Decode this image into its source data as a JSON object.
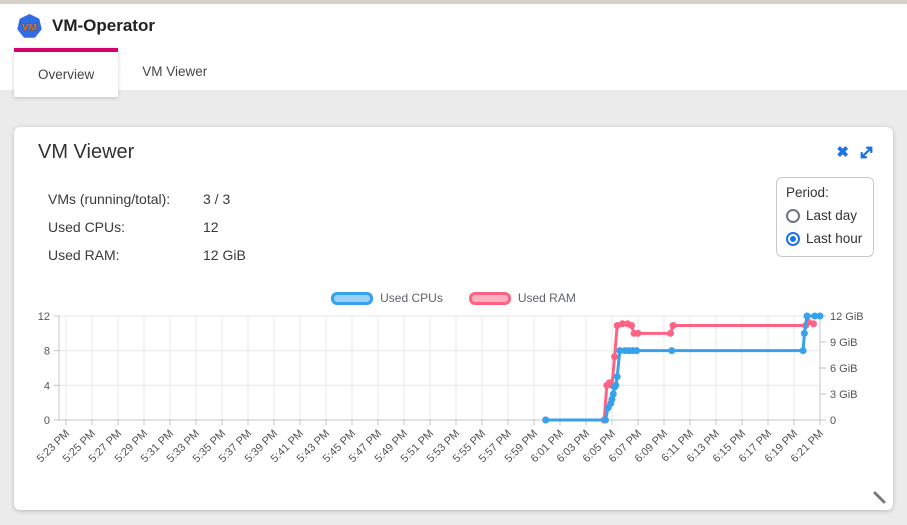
{
  "colors": {
    "tab_accent": "#d6006e",
    "icon_blue": "#1a73e8",
    "logo_blue": "#326ce5",
    "logo_text_orange": "#f08c2d",
    "page_background": "#ebebeb",
    "grid": "#e8e8e8",
    "axis_border": "#c4c4c4",
    "tick_text": "#545454"
  },
  "header": {
    "app_title": "VM-Operator",
    "logo_text": "VM"
  },
  "tabs": [
    {
      "label": "Overview",
      "active": true
    },
    {
      "label": "VM Viewer",
      "active": false
    }
  ],
  "panel": {
    "title": "VM Viewer",
    "stats": [
      {
        "label": "VMs (running/total):",
        "value": "3 / 3"
      },
      {
        "label": "Used CPUs:",
        "value": "12"
      },
      {
        "label": "Used RAM:",
        "value": "12 GiB"
      }
    ],
    "period": {
      "label": "Period:",
      "options": [
        {
          "label": "Last day",
          "selected": false
        },
        {
          "label": "Last hour",
          "selected": true
        }
      ]
    }
  },
  "chart_data": {
    "type": "line",
    "x_axis": {
      "start": "5:23 PM",
      "end": "6:21 PM",
      "interval_minutes": 2,
      "labels": [
        "5:23 PM",
        "5:25 PM",
        "5:27 PM",
        "5:29 PM",
        "5:31 PM",
        "5:33 PM",
        "5:35 PM",
        "5:37 PM",
        "5:39 PM",
        "5:41 PM",
        "5:43 PM",
        "5:45 PM",
        "5:47 PM",
        "5:49 PM",
        "5:51 PM",
        "5:53 PM",
        "5:55 PM",
        "5:57 PM",
        "5:59 PM",
        "6:01 PM",
        "6:03 PM",
        "6:05 PM",
        "6:07 PM",
        "6:09 PM",
        "6:11 PM",
        "6:13 PM",
        "6:15 PM",
        "6:17 PM",
        "6:19 PM",
        "6:21 PM"
      ]
    },
    "y_left": {
      "tick_values": [
        0,
        4,
        8,
        12
      ],
      "tick_labels": [
        "0",
        "4",
        "8",
        "12"
      ],
      "min": 0,
      "max": 12
    },
    "y_right": {
      "tick_values": [
        0,
        3,
        6,
        9,
        12
      ],
      "tick_labels": [
        "0",
        "3 GiB",
        "6 GiB",
        "9 GiB",
        "12 GiB"
      ],
      "min": 0,
      "max": 12
    },
    "grid": true,
    "legend_position": "top",
    "series": [
      {
        "name": "Used CPUs",
        "axis": "left",
        "color": "#36a2eb",
        "fill": "#9ad0f5",
        "points": [
          [
            36.9,
            0
          ],
          [
            41.5,
            0
          ],
          [
            41.7,
            1.4
          ],
          [
            41.9,
            1.9
          ],
          [
            42.0,
            2.4
          ],
          [
            42.1,
            3.0
          ],
          [
            42.2,
            3.8
          ],
          [
            42.3,
            4.0
          ],
          [
            42.4,
            5.0
          ],
          [
            42.6,
            8
          ],
          [
            43.0,
            8
          ],
          [
            43.3,
            8
          ],
          [
            43.6,
            8
          ],
          [
            43.9,
            8
          ],
          [
            46.6,
            8
          ],
          [
            56.7,
            8
          ],
          [
            56.8,
            10
          ],
          [
            57.0,
            12
          ],
          [
            57.6,
            12
          ],
          [
            58,
            12
          ]
        ]
      },
      {
        "name": "Used RAM",
        "axis": "right",
        "color": "#ff6384",
        "fill": "#ffb1c1",
        "points": [
          [
            36.9,
            0
          ],
          [
            41.4,
            0
          ],
          [
            41.6,
            4.0
          ],
          [
            41.8,
            4.3
          ],
          [
            42.0,
            4.0
          ],
          [
            42.2,
            7.3
          ],
          [
            42.4,
            10.9
          ],
          [
            42.8,
            11.1
          ],
          [
            43.2,
            11.1
          ],
          [
            43.5,
            10.9
          ],
          [
            43.7,
            10.0
          ],
          [
            44.0,
            10.0
          ],
          [
            46.5,
            10.0
          ],
          [
            46.7,
            10.9
          ],
          [
            56.9,
            10.9
          ],
          [
            57.1,
            11.3
          ],
          [
            57.5,
            11.1
          ]
        ]
      }
    ]
  }
}
